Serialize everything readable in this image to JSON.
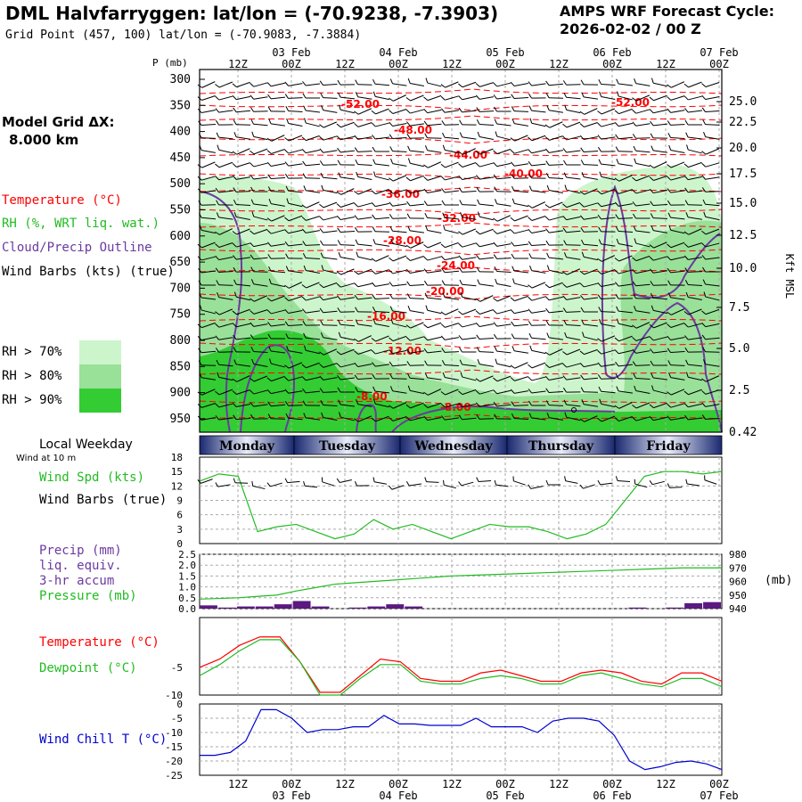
{
  "header": {
    "title": "DML Halvfarryggen:  lat/lon = (-70.9238, -7.3903)",
    "subtitle": "Grid Point (457, 100) lat/lon = (-70.9083, -7.3884)",
    "cycle_line1": "AMPS WRF Forecast Cycle:",
    "cycle_line2": "2026-02-02 / 00  Z"
  },
  "side": {
    "grid_label": "Model Grid ΔX:",
    "grid_value": "8.000 km",
    "temperature": "Temperature (°C)",
    "rh": "RH (%, WRT liq. wat.)",
    "cloud": "Cloud/Precip Outline",
    "wind_barbs": "Wind Barbs (kts) (true)",
    "rh70": "RH > 70%",
    "rh80": "RH > 80%",
    "rh90": "RH > 90%",
    "local_weekday": "Local Weekday",
    "wind_at": "Wind at 10 m",
    "wind_spd": "Wind Spd (kts)",
    "wind_barbs2": "Wind Barbs (true)",
    "precip": "Precip (mm)",
    "liq": "liq. equiv.",
    "accum": "3-hr accum",
    "pressure": "Pressure (mb)",
    "temp2": "Temperature (°C)",
    "dewpoint": "Dewpoint (°C)",
    "windchill": "Wind Chill T (°C)"
  },
  "colors": {
    "temp": "#ff0000",
    "rh": "#22bb22",
    "cloud": "#6a3aa0",
    "windchill": "#0000cc",
    "rh70": "#ccf5cc",
    "rh80": "#99e099",
    "rh90": "#33cc33",
    "grid": "#aaaaaa"
  },
  "chart_data": [
    {
      "type": "heatmap",
      "name": "cross-section",
      "top_time_labels": [
        "12Z",
        "00Z",
        "12Z",
        "00Z",
        "12Z",
        "00Z",
        "12Z",
        "00Z",
        "12Z",
        "00Z"
      ],
      "top_date_labels": [
        "03 Feb",
        "04 Feb",
        "05 Feb",
        "06 Feb",
        "07 Feb"
      ],
      "pressure_title": "P (mb)",
      "pressure_levels": [
        300,
        350,
        400,
        450,
        500,
        550,
        600,
        650,
        700,
        750,
        800,
        850,
        900,
        950
      ],
      "height_levels": [
        "25.0",
        "22.5",
        "20.0",
        "17.5",
        "15.0",
        "12.5",
        "10.0",
        "7.5",
        "5.0",
        "2.5",
        "0.42"
      ],
      "height_unit": "Kft MSL",
      "isotherm_labels": [
        "-52.00",
        "-52.00",
        "-48.00",
        "-44.00",
        "-40.00",
        "-36.00",
        "-32.00",
        "-28.00",
        "-24.00",
        "-20.00",
        "-16.00",
        "-12.00",
        "-8.00",
        "-8.00"
      ]
    },
    {
      "type": "line",
      "name": "wind-speed",
      "days": [
        "Monday",
        "Tuesday",
        "Wednesday",
        "Thursday",
        "Friday"
      ],
      "yticks": [
        0,
        3,
        6,
        9,
        12,
        15,
        18
      ],
      "ylim": [
        0,
        18
      ],
      "series": [
        {
          "values": [
            13,
            14.5,
            14,
            2.5,
            3.5,
            4,
            2.5,
            1,
            2,
            5,
            3,
            4,
            2.5,
            1,
            2.5,
            4,
            3.5,
            3.5,
            2.5,
            1,
            2,
            4,
            9,
            14,
            15,
            15,
            14.5,
            15
          ]
        }
      ]
    },
    {
      "type": "line",
      "name": "precip-pressure",
      "yticks_left": [
        "0.0",
        "0.5",
        "1.0",
        "1.5",
        "2.0",
        "2.5"
      ],
      "yticks_right": [
        "940",
        "950",
        "960",
        "970",
        "980"
      ],
      "right_unit": "(mb)",
      "pressure_values": [
        947,
        947.5,
        948,
        949,
        950,
        953,
        955.5,
        958,
        959,
        960,
        961,
        962,
        963,
        964,
        964.5,
        965,
        965.5,
        966,
        966.5,
        967,
        967.5,
        968,
        968.5,
        969,
        969.5,
        970,
        970,
        970
      ],
      "precip_values": [
        0.15,
        0.05,
        0.1,
        0.1,
        0.2,
        0.35,
        0.1,
        0,
        0.05,
        0.1,
        0.2,
        0.1,
        0,
        0,
        0,
        0,
        0,
        0,
        0,
        0,
        0,
        0,
        0,
        0.05,
        0,
        0.05,
        0.25,
        0.3
      ]
    },
    {
      "type": "line",
      "name": "temp-dewpoint",
      "yticks": [
        -5,
        -10
      ],
      "ylim": [
        -10,
        4
      ],
      "series": [
        {
          "values": [
            -5,
            -3.5,
            -1,
            0.5,
            0.5,
            -4,
            -9.5,
            -9.5,
            -6.5,
            -3.5,
            -4,
            -7,
            -7.5,
            -7.5,
            -6,
            -5.5,
            -6.5,
            -7.5,
            -7.5,
            -6,
            -5.5,
            -6,
            -7.5,
            -8,
            -6,
            -6,
            -7.5
          ]
        },
        {
          "values": [
            -6.5,
            -4.5,
            -2,
            0,
            0,
            -4,
            -10,
            -10,
            -7,
            -4.5,
            -4.5,
            -7.5,
            -8,
            -8,
            -7,
            -6.5,
            -7,
            -8,
            -8,
            -6.5,
            -6,
            -7,
            -8,
            -8.5,
            -7,
            -7,
            -8.5
          ]
        }
      ]
    },
    {
      "type": "line",
      "name": "wind-chill",
      "yticks": [
        0,
        -5,
        -10,
        -15,
        -20,
        -25
      ],
      "ylim": [
        -25,
        0
      ],
      "series": [
        {
          "values": [
            -18,
            -18,
            -17,
            -13,
            -2,
            -2,
            -5,
            -10,
            -9,
            -9,
            -8,
            -8,
            -4,
            -7,
            -7,
            -7.5,
            -7.5,
            -7.5,
            -5,
            -8,
            -8,
            -8,
            -10,
            -6,
            -5,
            -5,
            -6,
            -11,
            -20,
            -23,
            -22,
            -20.5,
            -20,
            -21,
            -23
          ]
        }
      ]
    }
  ]
}
